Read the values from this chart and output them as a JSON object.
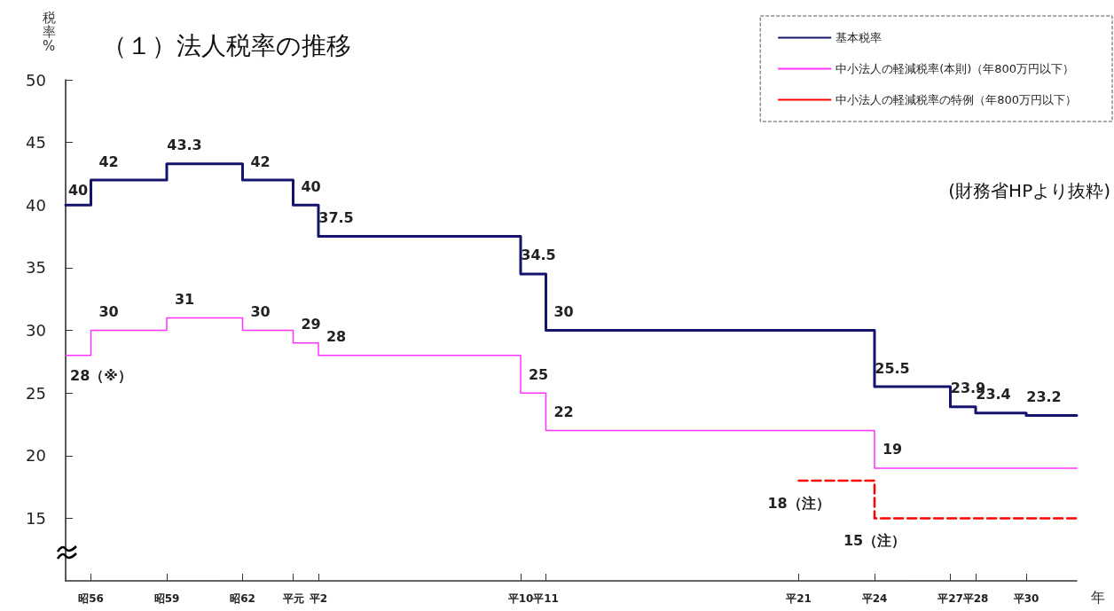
{
  "chart_data": {
    "type": "step",
    "title": "（１）法人税率の推移",
    "ylabel": "税率%",
    "xlabel": "年",
    "annotations": [
      "(財務省HPより抜粋)"
    ],
    "categories": [
      null,
      "昭56",
      null,
      null,
      "昭59",
      null,
      null,
      "昭62",
      null,
      "平元",
      "平2",
      null,
      null,
      null,
      null,
      null,
      null,
      null,
      "平10",
      "平11",
      null,
      null,
      null,
      null,
      null,
      null,
      null,
      null,
      null,
      "平21",
      null,
      null,
      "平24",
      null,
      null,
      "平27",
      "平28",
      null,
      "平30",
      null,
      null
    ],
    "ylim": [
      10,
      50
    ],
    "yticks": [
      15,
      20,
      25,
      30,
      35,
      40,
      45,
      50
    ],
    "grid": false,
    "legend": "top right",
    "marker": "none",
    "series": [
      {
        "name": "基本税率",
        "color": "#14146e",
        "line_style": "solid",
        "values": [
          40,
          42,
          42,
          42,
          43.3,
          43.3,
          43.3,
          42,
          42,
          40,
          37.5,
          37.5,
          37.5,
          37.5,
          37.5,
          37.5,
          37.5,
          37.5,
          34.5,
          30,
          30,
          30,
          30,
          30,
          30,
          30,
          30,
          30,
          30,
          30,
          30,
          30,
          25.5,
          25.5,
          25.5,
          23.9,
          23.4,
          23.4,
          23.2,
          23.2,
          23.2
        ],
        "value_labels": [
          "40",
          "42",
          null,
          null,
          "43.3",
          null,
          null,
          "42",
          null,
          "40",
          "37.5",
          null,
          null,
          null,
          null,
          null,
          null,
          null,
          "34.5",
          "30",
          null,
          null,
          null,
          null,
          null,
          null,
          null,
          null,
          null,
          null,
          null,
          null,
          "25.5",
          null,
          null,
          "23.9",
          "23.4",
          null,
          "23.2",
          null,
          null
        ]
      },
      {
        "name": "中小法人の軽減税率(本則)（年800万円以下）",
        "color": "#ff33ff",
        "line_style": "solid",
        "values": [
          28,
          30,
          30,
          30,
          31,
          31,
          31,
          30,
          30,
          29,
          28,
          28,
          28,
          28,
          28,
          28,
          28,
          28,
          25,
          22,
          22,
          22,
          22,
          22,
          22,
          22,
          22,
          22,
          22,
          22,
          22,
          22,
          19,
          19,
          19,
          19,
          19,
          19,
          19,
          19,
          19
        ],
        "value_labels": [
          "28（※）",
          "30",
          null,
          null,
          "31",
          null,
          null,
          "30",
          null,
          "29",
          "28",
          null,
          null,
          null,
          null,
          null,
          null,
          null,
          "25",
          "22",
          null,
          null,
          null,
          null,
          null,
          null,
          null,
          null,
          null,
          null,
          null,
          null,
          "19",
          null,
          null,
          null,
          null,
          null,
          null,
          null,
          null
        ]
      },
      {
        "name": "中小法人の軽減税率の特例（年800万円以下）",
        "color": "#ff0000",
        "line_style": "dashed",
        "values": [
          null,
          null,
          null,
          null,
          null,
          null,
          null,
          null,
          null,
          null,
          null,
          null,
          null,
          null,
          null,
          null,
          null,
          null,
          null,
          null,
          null,
          null,
          null,
          null,
          null,
          null,
          null,
          null,
          null,
          18,
          18,
          18,
          15,
          15,
          15,
          15,
          15,
          15,
          15,
          15,
          15
        ],
        "value_labels": [
          null,
          null,
          null,
          null,
          null,
          null,
          null,
          null,
          null,
          null,
          null,
          null,
          null,
          null,
          null,
          null,
          null,
          null,
          null,
          null,
          null,
          null,
          null,
          null,
          null,
          null,
          null,
          null,
          null,
          "18（注）",
          null,
          null,
          "15（注）",
          null,
          null,
          null,
          null,
          null,
          null,
          null,
          null
        ]
      }
    ]
  }
}
